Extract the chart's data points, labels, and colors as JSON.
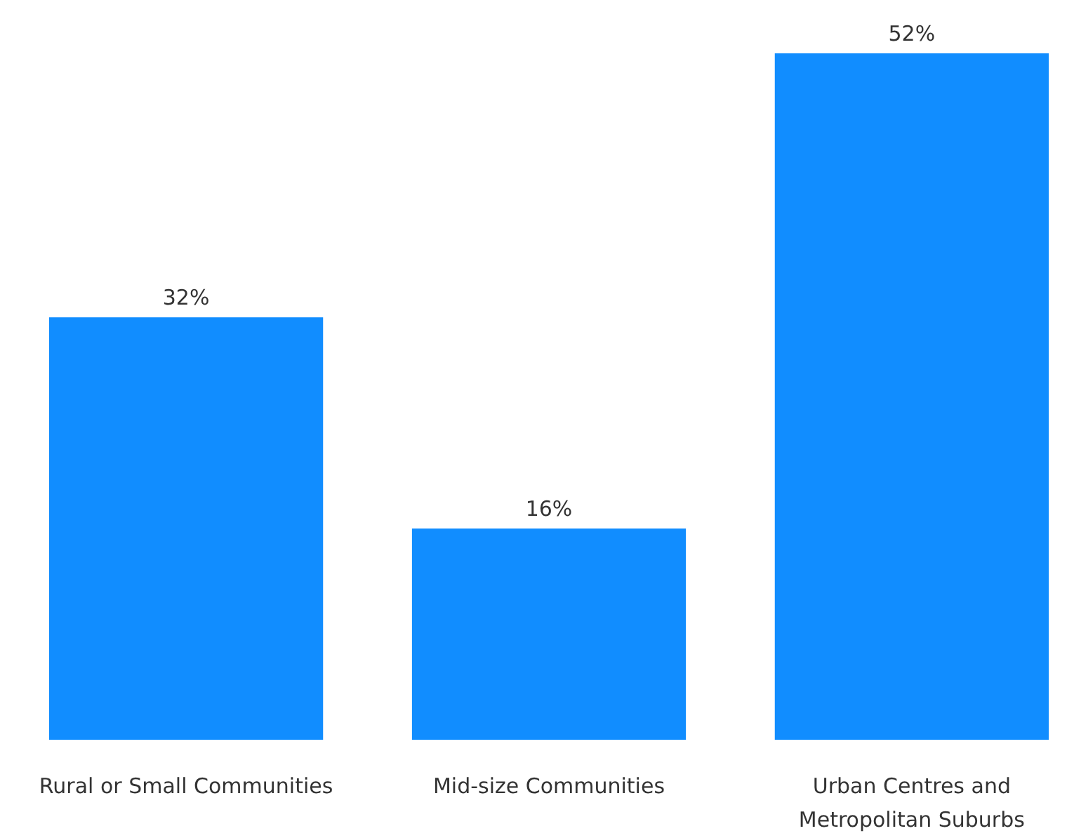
{
  "chart_data": {
    "type": "bar",
    "categories": [
      "Rural or Small Communities",
      "Mid-size Communities",
      "Urban Centres and Metropolitan Suburbs"
    ],
    "values": [
      32,
      16,
      52
    ],
    "value_labels": [
      "32%",
      "16%",
      "52%"
    ],
    "color": "#118dff"
  }
}
